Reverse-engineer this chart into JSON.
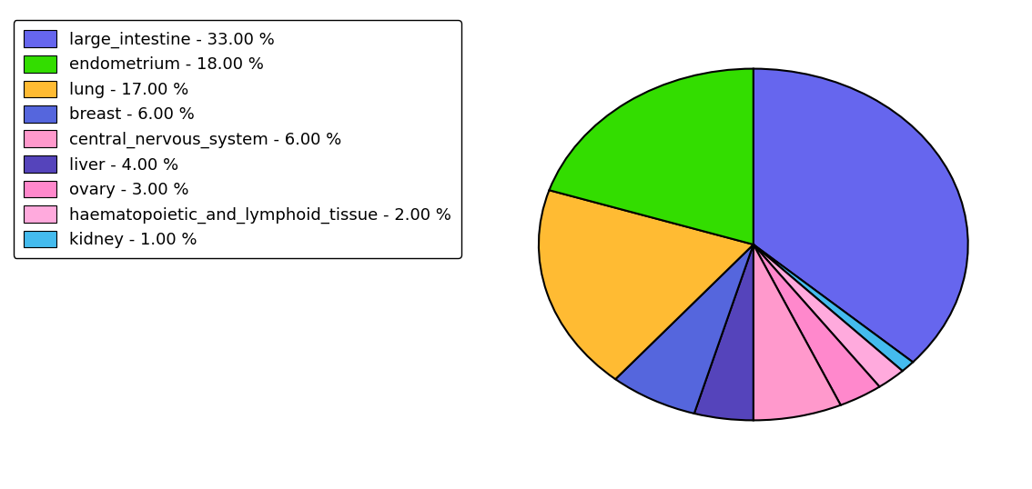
{
  "labels": [
    "large_intestine - 33.00 %",
    "endometrium - 18.00 %",
    "lung - 17.00 %",
    "breast - 6.00 %",
    "central_nervous_system - 6.00 %",
    "liver - 4.00 %",
    "ovary - 3.00 %",
    "haematopoietic_and_lymphoid_tissue - 2.00 %",
    "kidney - 1.00 %"
  ],
  "pie_order": [
    0,
    8,
    7,
    6,
    4,
    5,
    3,
    2,
    1
  ],
  "values": [
    33,
    18,
    17,
    6,
    6,
    4,
    3,
    2,
    1
  ],
  "colors": [
    "#6666ee",
    "#33dd00",
    "#ffbb33",
    "#5566dd",
    "#ff99cc",
    "#5544bb",
    "#ff88cc",
    "#ffaadd",
    "#44bbee"
  ],
  "background_color": "#ffffff",
  "legend_fontsize": 13,
  "startangle": 90
}
